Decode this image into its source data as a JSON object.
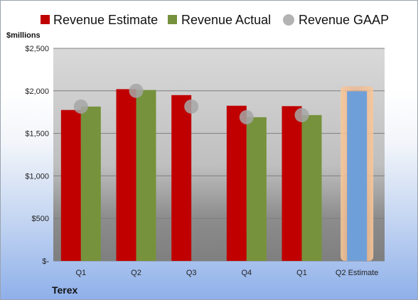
{
  "chart_data": {
    "type": "bar",
    "categories": [
      "Q1",
      "Q2",
      "Q3",
      "Q4",
      "Q1",
      "Q2 Estimate"
    ],
    "series": [
      {
        "name": "Revenue Estimate",
        "color": "#c00000",
        "values": [
          1775,
          2020,
          1950,
          1825,
          1820,
          null
        ]
      },
      {
        "name": "Revenue Actual",
        "color": "#76923c",
        "values": [
          1815,
          2010,
          null,
          1690,
          1715,
          null
        ]
      },
      {
        "name": "Revenue GAAP",
        "color": "#a6a6a6",
        "marker": "circle",
        "values": [
          1815,
          2000,
          1815,
          1690,
          1715,
          null
        ]
      },
      {
        "color": "#6f9fd8",
        "highlight": "#f4b183",
        "values": [
          null,
          null,
          null,
          null,
          null,
          1995
        ]
      }
    ],
    "y_ticks": [
      "$-",
      "$500",
      "$1,000",
      "$1,500",
      "$2,000",
      "$2,500"
    ],
    "ylim": [
      0,
      2500
    ],
    "ylabel": "$millions",
    "xlabel": "",
    "grid": true,
    "legend_position": "top",
    "source_label": "Terex"
  }
}
